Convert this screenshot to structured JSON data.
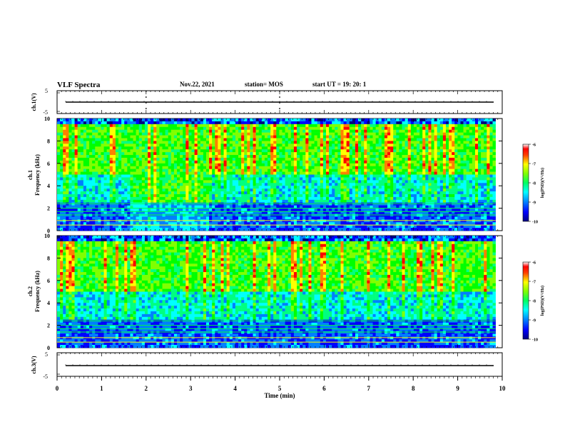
{
  "header": {
    "title": "VLF Spectra",
    "date": "Nov.22, 2021",
    "station": "station= MOS",
    "start": "start UT = 19: 20: 1"
  },
  "chart_data": [
    {
      "type": "line",
      "name": "ch1-waveform",
      "ylabel": "ch.1(V)",
      "yticks": [
        "5",
        "-5"
      ],
      "ylim": [
        -5,
        5
      ],
      "x_range_min": [
        0,
        10
      ],
      "level": 0
    },
    {
      "type": "heatmap",
      "name": "ch1-spectrogram",
      "ylabel": "Frequency (kHz)",
      "channel_label": "ch.1",
      "yticks": [
        "0",
        "2",
        "4",
        "6",
        "8",
        "10"
      ],
      "ylim": [
        0,
        10
      ],
      "x_range_min": [
        0,
        9.85
      ],
      "colorbar": {
        "label": "log(PSD)(V²/Hz)",
        "ticks": [
          "-6",
          "-7",
          "-8",
          "-9",
          "-10"
        ],
        "range": [
          -10,
          -6
        ]
      }
    },
    {
      "type": "heatmap",
      "name": "ch2-spectrogram",
      "ylabel": "Frequency (kHz)",
      "channel_label": "ch.2",
      "yticks": [
        "0",
        "2",
        "4",
        "6",
        "8",
        "10"
      ],
      "ylim": [
        0,
        10
      ],
      "x_range_min": [
        0,
        9.85
      ],
      "colorbar": {
        "label": "log(PSD)(V²/Hz)",
        "ticks": [
          "-6",
          "-7",
          "-8",
          "-9",
          "-10"
        ],
        "range": [
          -10,
          -6
        ]
      }
    },
    {
      "type": "line",
      "name": "ch3-waveform",
      "ylabel": "ch.3(V)",
      "yticks": [
        "5",
        "-5"
      ],
      "ylim": [
        -5,
        5
      ],
      "level": 0
    }
  ],
  "xaxis": {
    "label": "Time (min)",
    "ticks": [
      "0",
      "1",
      "2",
      "3",
      "4",
      "5",
      "6",
      "7",
      "8",
      "9",
      "10"
    ],
    "range": [
      0,
      10
    ]
  },
  "colors": {
    "colormap": [
      "#000080",
      "#0000ff",
      "#0080ff",
      "#00ffff",
      "#00ff80",
      "#00ff00",
      "#80ff00",
      "#ffff00",
      "#ff8000",
      "#ff0000",
      "#ffffff"
    ]
  }
}
